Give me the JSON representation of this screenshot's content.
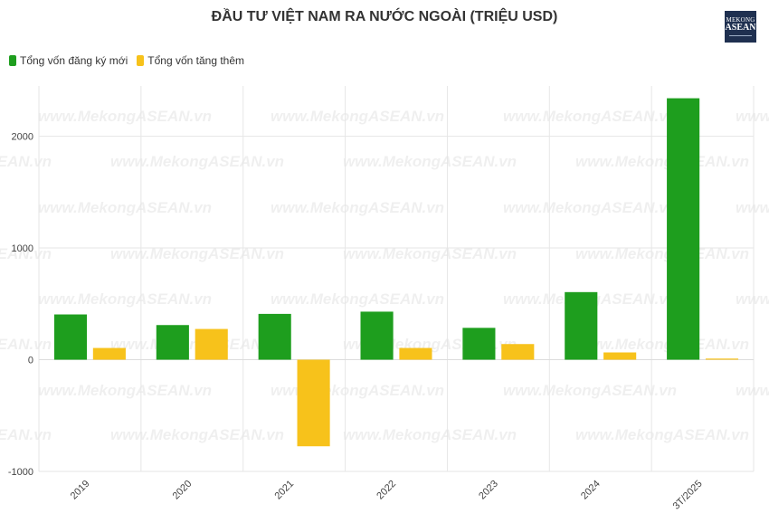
{
  "header": {
    "title": "ĐẦU TƯ VIỆT NAM RA NƯỚC NGOÀI (TRIỆU USD)",
    "logo_line1": "MEKONG",
    "logo_line2": "ASEAN"
  },
  "watermark_text": "www.MekongASEAN.vn",
  "colors": {
    "new_registered": "#1e9e1e",
    "additional": "#f7c21b",
    "grid": "#e6e6e6"
  },
  "chart_data": {
    "type": "bar",
    "title": "ĐẦU TƯ VIỆT NAM RA NƯỚC NGOÀI (TRIỆU USD)",
    "xlabel": "",
    "ylabel": "",
    "categories": [
      "2019",
      "2020",
      "2021",
      "2022",
      "2023",
      "2024",
      "3T/2025"
    ],
    "series": [
      {
        "name": "Tổng vốn đăng ký mới",
        "values": [
          405,
          310,
          410,
          430,
          285,
          605,
          2340
        ]
      },
      {
        "name": "Tổng vốn tăng thêm",
        "values": [
          105,
          275,
          -775,
          105,
          140,
          65,
          10
        ]
      }
    ],
    "ylim": [
      -1000,
      2450
    ],
    "yticks": [
      -1000,
      0,
      1000,
      2000
    ],
    "grid": true,
    "legend_position": "top-left"
  }
}
